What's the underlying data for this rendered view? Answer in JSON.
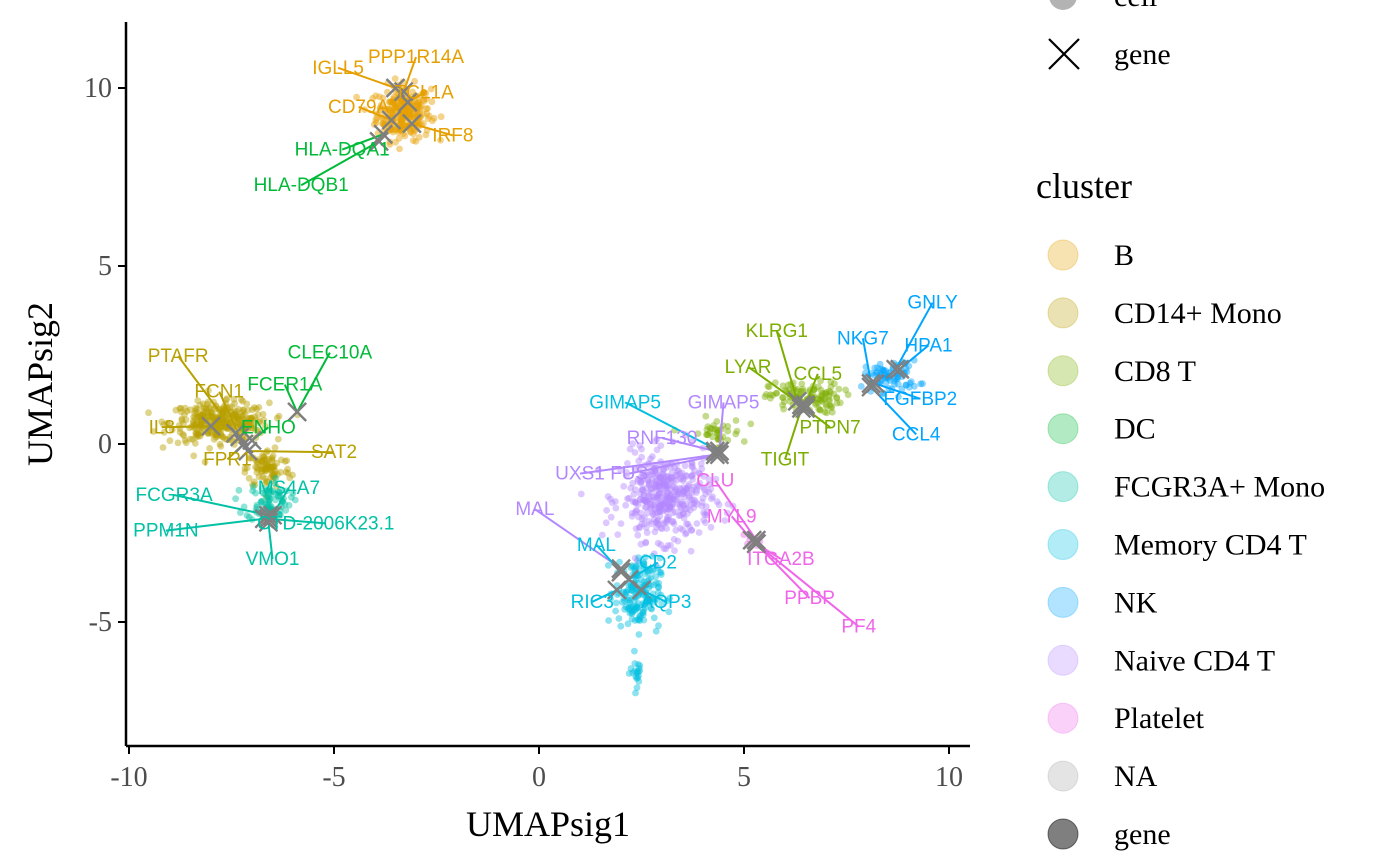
{
  "chart_data": {
    "type": "scatter",
    "xlabel": "UMAPsig1",
    "ylabel": "UMAPsig2",
    "xlim": [
      -10.1,
      10.6
    ],
    "ylim": [
      -8.5,
      11.9
    ],
    "x_ticks": [
      -10,
      -5,
      0,
      5,
      10
    ],
    "y_ticks": [
      -5,
      0,
      5,
      10
    ],
    "x_tick_labels": [
      "-10",
      "-5",
      "0",
      "5",
      "10"
    ],
    "y_tick_labels": [
      "-5",
      "0",
      "5",
      "10"
    ],
    "grid": false,
    "legend_placement": "right",
    "shape_legend": [
      {
        "label": "cell",
        "shape": "circle",
        "color": "#b3b3b3"
      },
      {
        "label": "gene",
        "shape": "cross",
        "color": "#000000"
      }
    ],
    "color_legend_title": "cluster",
    "color_legend": [
      {
        "label": "B",
        "color": "#E69F00"
      },
      {
        "label": "CD14+ Mono",
        "color": "#B8A000"
      },
      {
        "label": "CD8 T",
        "color": "#7CAE00"
      },
      {
        "label": "DC",
        "color": "#00BA38"
      },
      {
        "label": "FCGR3A+ Mono",
        "color": "#00C1A5"
      },
      {
        "label": "Memory CD4 T",
        "color": "#00BFE0"
      },
      {
        "label": "NK",
        "color": "#00A5FF"
      },
      {
        "label": "Naive CD4 T",
        "color": "#B388FF"
      },
      {
        "label": "Platelet",
        "color": "#F066EA"
      },
      {
        "label": "NA",
        "color": "#a6a6a6"
      },
      {
        "label": "gene",
        "color": "#000000"
      }
    ],
    "cell_clusters": [
      {
        "name": "B",
        "color": "#E69F00",
        "center": [
          -3.3,
          9.3
        ],
        "spread": [
          0.6,
          0.7
        ],
        "n": 260
      },
      {
        "name": "CD14+ Mono",
        "color": "#B8A000",
        "center": [
          -7.8,
          0.6
        ],
        "spread": [
          1.1,
          0.5
        ],
        "n": 330
      },
      {
        "name": "CD14+ Mono",
        "color": "#B8A000",
        "center": [
          -6.6,
          -0.7
        ],
        "spread": [
          0.5,
          0.5
        ],
        "n": 90
      },
      {
        "name": "FCGR3A+ Mono",
        "color": "#00C1A5",
        "center": [
          -6.6,
          -1.6
        ],
        "spread": [
          0.5,
          0.5
        ],
        "n": 80
      },
      {
        "name": "CD8 T",
        "color": "#7CAE00",
        "center": [
          6.5,
          1.3
        ],
        "spread": [
          0.8,
          0.4
        ],
        "n": 120
      },
      {
        "name": "NK",
        "color": "#00A5FF",
        "center": [
          8.6,
          1.9
        ],
        "spread": [
          0.6,
          0.4
        ],
        "n": 80
      },
      {
        "name": "CD8 T",
        "color": "#7CAE00",
        "center": [
          4.3,
          0.3
        ],
        "spread": [
          0.6,
          0.4
        ],
        "n": 40
      },
      {
        "name": "Naive CD4 T",
        "color": "#B388FF",
        "center": [
          3.1,
          -1.5
        ],
        "spread": [
          1.0,
          1.1
        ],
        "n": 420
      },
      {
        "name": "Memory CD4 T",
        "color": "#00BFE0",
        "center": [
          2.4,
          -4.2
        ],
        "spread": [
          0.5,
          0.9
        ],
        "n": 180
      },
      {
        "name": "Memory CD4 T",
        "color": "#00BFE0",
        "center": [
          2.4,
          -6.4
        ],
        "spread": [
          0.15,
          0.5
        ],
        "n": 20
      },
      {
        "name": "Platelet",
        "color": "#F066EA",
        "center": [
          5.2,
          -2.7
        ],
        "spread": [
          0.15,
          0.15
        ],
        "n": 12
      }
    ],
    "genes": [
      {
        "name": "IGLL5",
        "x": -3.5,
        "y": 10.0,
        "color": "#E69F00",
        "label": [
          -4.9,
          10.4
        ]
      },
      {
        "name": "PPP1R14A",
        "x": -3.3,
        "y": 9.9,
        "color": "#E69F00",
        "label": [
          -3.0,
          10.7
        ]
      },
      {
        "name": "TCL1A",
        "x": -3.2,
        "y": 9.6,
        "color": "#E69F00",
        "label": [
          -2.8,
          9.7
        ]
      },
      {
        "name": "CD79A",
        "x": -3.6,
        "y": 9.1,
        "color": "#E69F00",
        "label": [
          -4.4,
          9.3
        ]
      },
      {
        "name": "IRF8",
        "x": -3.1,
        "y": 9.0,
        "color": "#E69F00",
        "label": [
          -2.1,
          8.5
        ]
      },
      {
        "name": "HLA-DQA1",
        "x": -3.8,
        "y": 8.7,
        "color": "#00BA38",
        "label": [
          -4.8,
          8.1
        ]
      },
      {
        "name": "HLA-DQB1",
        "x": -3.9,
        "y": 8.5,
        "color": "#00BA38",
        "label": [
          -5.8,
          7.1
        ]
      },
      {
        "name": "PTAFR",
        "x": -7.4,
        "y": 0.3,
        "color": "#B8A000",
        "label": [
          -8.8,
          2.3
        ]
      },
      {
        "name": "FCN1",
        "x": -7.3,
        "y": 0.2,
        "color": "#B8A000",
        "label": [
          -7.8,
          1.3
        ]
      },
      {
        "name": "IL8",
        "x": -8.0,
        "y": 0.5,
        "color": "#B8A000",
        "label": [
          -9.2,
          0.3
        ]
      },
      {
        "name": "FPR1",
        "x": -7.2,
        "y": 0.0,
        "color": "#B8A000",
        "label": [
          -7.6,
          -0.6
        ]
      },
      {
        "name": "SAT2",
        "x": -7.1,
        "y": -0.2,
        "color": "#B8A000",
        "label": [
          -5.0,
          -0.4
        ]
      },
      {
        "name": "CLEC10A",
        "x": -5.9,
        "y": 0.9,
        "color": "#00BA38",
        "label": [
          -5.1,
          2.4
        ]
      },
      {
        "name": "FCER1A",
        "x": -5.9,
        "y": 0.9,
        "color": "#00BA38",
        "label": [
          -6.2,
          1.5
        ]
      },
      {
        "name": "ENHO",
        "x": -7.0,
        "y": 0.1,
        "color": "#00BA38",
        "label": [
          -6.6,
          0.3
        ]
      },
      {
        "name": "FCGR3A",
        "x": -6.6,
        "y": -2.0,
        "color": "#00C1A5",
        "label": [
          -8.9,
          -1.6
        ]
      },
      {
        "name": "MS4A7",
        "x": -6.5,
        "y": -2.0,
        "color": "#00C1A5",
        "label": [
          -6.1,
          -1.4
        ]
      },
      {
        "name": "PPM1N",
        "x": -6.7,
        "y": -2.1,
        "color": "#00C1A5",
        "label": [
          -9.1,
          -2.6
        ]
      },
      {
        "name": "CTD-2006K23.1",
        "x": -6.6,
        "y": -2.1,
        "color": "#00C1A5",
        "label": [
          -5.2,
          -2.4
        ]
      },
      {
        "name": "VMO1",
        "x": -6.6,
        "y": -2.2,
        "color": "#00C1A5",
        "label": [
          -6.5,
          -3.4
        ]
      },
      {
        "name": "KLRG1",
        "x": 6.3,
        "y": 1.2,
        "color": "#7CAE00",
        "label": [
          5.8,
          3.0
        ]
      },
      {
        "name": "LYAR",
        "x": 6.4,
        "y": 1.1,
        "color": "#7CAE00",
        "label": [
          5.1,
          2.0
        ]
      },
      {
        "name": "CCL5",
        "x": 6.5,
        "y": 1.1,
        "color": "#7CAE00",
        "label": [
          6.8,
          1.8
        ]
      },
      {
        "name": "PTPN7",
        "x": 6.5,
        "y": 1.0,
        "color": "#7CAE00",
        "label": [
          7.1,
          0.3
        ]
      },
      {
        "name": "TIGIT",
        "x": 6.4,
        "y": 1.0,
        "color": "#7CAE00",
        "label": [
          6.0,
          -0.6
        ]
      },
      {
        "name": "NKG7",
        "x": 8.1,
        "y": 1.7,
        "color": "#00A5FF",
        "label": [
          7.9,
          2.8
        ]
      },
      {
        "name": "GNLY",
        "x": 8.7,
        "y": 2.1,
        "color": "#00A5FF",
        "label": [
          9.6,
          3.8
        ]
      },
      {
        "name": "HPA1",
        "x": 8.8,
        "y": 2.1,
        "color": "#00A5FF",
        "label": [
          9.5,
          2.6
        ]
      },
      {
        "name": "FGFBP2",
        "x": 8.2,
        "y": 1.7,
        "color": "#00A5FF",
        "label": [
          9.3,
          1.1
        ]
      },
      {
        "name": "CCL4",
        "x": 8.1,
        "y": 1.6,
        "color": "#00A5FF",
        "label": [
          9.2,
          0.1
        ]
      },
      {
        "name": "GIMAP5",
        "x": 4.4,
        "y": -0.2,
        "color": "#00BFE0",
        "label": [
          2.1,
          1.0
        ]
      },
      {
        "name": "GIMAP5",
        "x": 4.4,
        "y": -0.2,
        "color": "#B388FF",
        "label": [
          4.5,
          1.0
        ]
      },
      {
        "name": "RNF130",
        "x": 4.3,
        "y": -0.2,
        "color": "#B388FF",
        "label": [
          3.0,
          0.0
        ]
      },
      {
        "name": "UXS1",
        "x": 4.3,
        "y": -0.3,
        "color": "#B388FF",
        "label": [
          1.0,
          -1.0
        ]
      },
      {
        "name": "FUS",
        "x": 4.4,
        "y": -0.3,
        "color": "#B388FF",
        "label": [
          2.2,
          -1.0
        ]
      },
      {
        "name": "MAL",
        "x": 2.0,
        "y": -3.5,
        "color": "#B388FF",
        "label": [
          -0.1,
          -2.0
        ]
      },
      {
        "name": "CLU",
        "x": 5.3,
        "y": -2.7,
        "color": "#F066EA",
        "label": [
          4.3,
          -1.2
        ]
      },
      {
        "name": "MYL9",
        "x": 5.2,
        "y": -2.7,
        "color": "#F066EA",
        "label": [
          4.7,
          -2.2
        ]
      },
      {
        "name": "ITGA2B",
        "x": 5.3,
        "y": -2.8,
        "color": "#F066EA",
        "label": [
          5.9,
          -3.4
        ]
      },
      {
        "name": "PPBP",
        "x": 5.3,
        "y": -2.8,
        "color": "#F066EA",
        "label": [
          6.6,
          -4.5
        ]
      },
      {
        "name": "PF4",
        "x": 5.3,
        "y": -2.8,
        "color": "#F066EA",
        "label": [
          7.8,
          -5.3
        ]
      },
      {
        "name": "MAL",
        "x": 2.0,
        "y": -3.6,
        "color": "#00BFE0",
        "label": [
          1.4,
          -3.0
        ]
      },
      {
        "name": "CD2",
        "x": 2.2,
        "y": -3.8,
        "color": "#00BFE0",
        "label": [
          2.9,
          -3.5
        ]
      },
      {
        "name": "RIC3",
        "x": 1.9,
        "y": -4.1,
        "color": "#00BFE0",
        "label": [
          1.3,
          -4.6
        ]
      },
      {
        "name": "AQP3",
        "x": 2.5,
        "y": -4.1,
        "color": "#00BFE0",
        "label": [
          3.1,
          -4.6
        ]
      }
    ]
  }
}
